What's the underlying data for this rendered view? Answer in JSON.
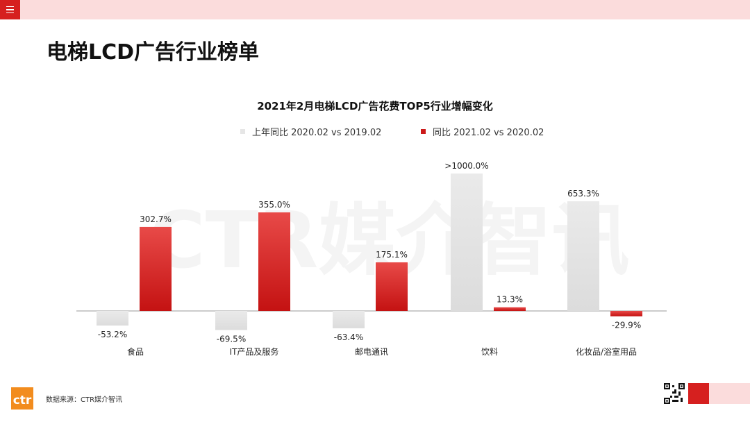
{
  "page": {
    "title": "电梯LCD广告行业榜单",
    "source": "数据来源：CTR媒介智讯",
    "logo_text": "ctr",
    "watermark": "CTR媒介智讯"
  },
  "colors": {
    "accent": "#d6201f",
    "band": "#fbdcdc",
    "series_prev": "#e6e6e6",
    "series_curr": "#cc1a1a"
  },
  "icons": {
    "menu": "menu-icon",
    "qr": "qr-code-icon",
    "logo": "ctr-logo-icon"
  },
  "chart_data": {
    "type": "bar",
    "title": "2021年2月电梯LCD广告花费TOP5行业增幅变化",
    "categories": [
      "食品",
      "IT产品及服务",
      "邮电通讯",
      "饮料",
      "化妆品/浴室用品"
    ],
    "legend_position": "top",
    "grid": false,
    "ylim": [
      -100,
      1000
    ],
    "series": [
      {
        "name": "上年同比 2020.02 vs 2019.02",
        "values": [
          -53.2,
          -69.5,
          -63.4,
          1000.0,
          653.3
        ],
        "labels": [
          "-53.2%",
          "-69.5%",
          "-63.4%",
          ">1000.0%",
          "653.3%"
        ]
      },
      {
        "name": "同比 2021.02 vs 2020.02",
        "values": [
          302.7,
          355.0,
          175.1,
          13.3,
          -29.9
        ],
        "labels": [
          "302.7%",
          "355.0%",
          "175.1%",
          "13.3%",
          "-29.9%"
        ]
      }
    ]
  }
}
